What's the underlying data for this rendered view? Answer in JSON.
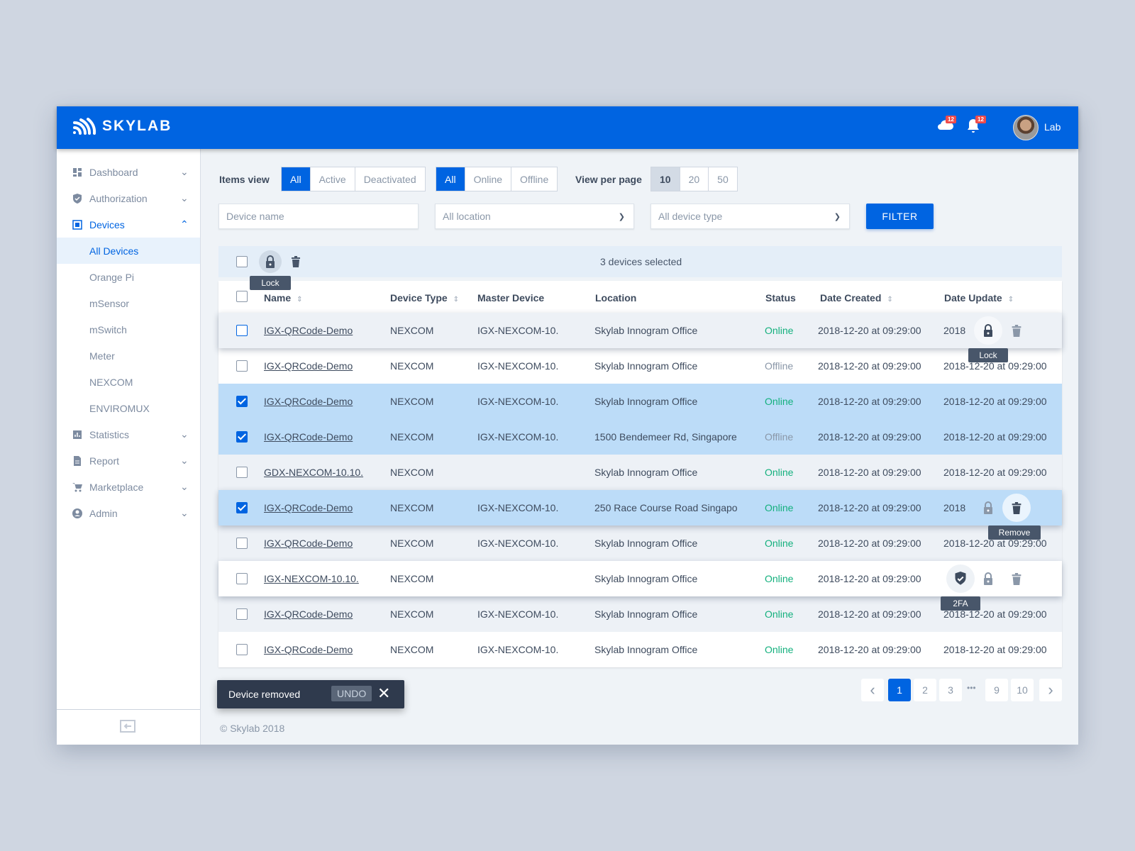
{
  "header": {
    "brand": "SKYLAB",
    "cloud_badge": "12",
    "bell_badge": "12",
    "user_name": "Lab"
  },
  "sidebar": {
    "items": [
      {
        "label": "Dashboard",
        "icon": "dashboard-icon"
      },
      {
        "label": "Authorization",
        "icon": "shield-icon"
      },
      {
        "label": "Devices",
        "icon": "devices-icon",
        "expanded": true
      },
      {
        "label": "All Devices",
        "sub": true,
        "active": true
      },
      {
        "label": "Orange Pi",
        "sub": true
      },
      {
        "label": "mSensor",
        "sub": true
      },
      {
        "label": "mSwitch",
        "sub": true
      },
      {
        "label": "Meter",
        "sub": true
      },
      {
        "label": "NEXCOM",
        "sub": true
      },
      {
        "label": "ENVIROMUX",
        "sub": true
      },
      {
        "label": "Statistics",
        "icon": "chart-icon"
      },
      {
        "label": "Report",
        "icon": "document-icon"
      },
      {
        "label": "Marketplace",
        "icon": "cart-icon"
      },
      {
        "label": "Admin",
        "icon": "user-icon"
      }
    ]
  },
  "filters": {
    "items_view_label": "Items view",
    "items_view": [
      "All",
      "Active",
      "Deactivated"
    ],
    "status": [
      "All",
      "Online",
      "Offline"
    ],
    "per_page_label": "View per page",
    "per_page": [
      "10",
      "20",
      "50"
    ],
    "device_name_placeholder": "Device name",
    "location": "All location",
    "device_type": "All device type",
    "filter_button": "FILTER"
  },
  "selection": {
    "text": "3 devices selected",
    "tooltip": "Lock"
  },
  "columns": [
    "Name",
    "Device Type",
    "Master Device",
    "Location",
    "Status",
    "Date Created",
    "Date Update"
  ],
  "rows": [
    {
      "name": "IGX-QRCode-Demo",
      "type": "NEXCOM",
      "master": "IGX-NEXCOM-10.",
      "location": "Skylab Innogram Office",
      "status": "Online",
      "created": "2018-12-20 at 09:29:00",
      "updated": "2018",
      "checked": false,
      "tooltip": "Lock"
    },
    {
      "name": "IGX-QRCode-Demo",
      "type": "NEXCOM",
      "master": "IGX-NEXCOM-10.",
      "location": "Skylab Innogram Office",
      "status": "Offline",
      "created": "2018-12-20 at 09:29:00",
      "updated": "2018-12-20 at 09:29:00",
      "checked": false
    },
    {
      "name": "IGX-QRCode-Demo",
      "type": "NEXCOM",
      "master": "IGX-NEXCOM-10.",
      "location": "Skylab Innogram Office",
      "status": "Online",
      "created": "2018-12-20 at 09:29:00",
      "updated": "2018-12-20 at 09:29:00",
      "checked": true
    },
    {
      "name": "IGX-QRCode-Demo",
      "type": "NEXCOM",
      "master": "IGX-NEXCOM-10.",
      "location": "1500 Bendemeer Rd, Singapore",
      "status": "Offline",
      "created": "2018-12-20 at 09:29:00",
      "updated": "2018-12-20 at 09:29:00",
      "checked": true
    },
    {
      "name": "GDX-NEXCOM-10.10.",
      "type": "NEXCOM",
      "master": "",
      "location": "Skylab Innogram Office",
      "status": "Online",
      "created": "2018-12-20 at 09:29:00",
      "updated": "2018-12-20 at 09:29:00",
      "checked": false
    },
    {
      "name": "IGX-QRCode-Demo",
      "type": "NEXCOM",
      "master": "IGX-NEXCOM-10.",
      "location": "250 Race Course Road Singapo",
      "status": "Online",
      "created": "2018-12-20 at 09:29:00",
      "updated": "2018",
      "checked": true,
      "tooltip": "Remove"
    },
    {
      "name": "IGX-QRCode-Demo",
      "type": "NEXCOM",
      "master": "IGX-NEXCOM-10.",
      "location": "Skylab Innogram Office",
      "status": "Online",
      "created": "2018-12-20 at 09:29:00",
      "updated": "2018-12-20 at 09:29:00",
      "checked": false
    },
    {
      "name": "IGX-NEXCOM-10.10.",
      "type": "NEXCOM",
      "master": "",
      "location": "Skylab Innogram Office",
      "status": "Online",
      "created": "2018-12-20 at 09:29:00",
      "updated": "",
      "checked": false,
      "tooltip": "2FA"
    },
    {
      "name": "IGX-QRCode-Demo",
      "type": "NEXCOM",
      "master": "IGX-NEXCOM-10.",
      "location": "Skylab Innogram Office",
      "status": "Online",
      "created": "2018-12-20 at 09:29:00",
      "updated": "2018-12-20 at 09:29:00",
      "checked": false
    },
    {
      "name": "IGX-QRCode-Demo",
      "type": "NEXCOM",
      "master": "IGX-NEXCOM-10.",
      "location": "Skylab Innogram Office",
      "status": "Online",
      "created": "2018-12-20 at 09:29:00",
      "updated": "2018-12-20 at 09:29:00",
      "checked": false
    }
  ],
  "pagination": {
    "pages": [
      "1",
      "2",
      "3",
      "9",
      "10"
    ],
    "current": "1",
    "ellipsis": "•••"
  },
  "snackbar": {
    "message": "Device removed",
    "undo": "UNDO"
  },
  "footer": {
    "copyright": "© Skylab 2018"
  },
  "colors": {
    "primary": "#0064e1",
    "online": "#13b07d",
    "selected_row": "#bcdcf8"
  }
}
